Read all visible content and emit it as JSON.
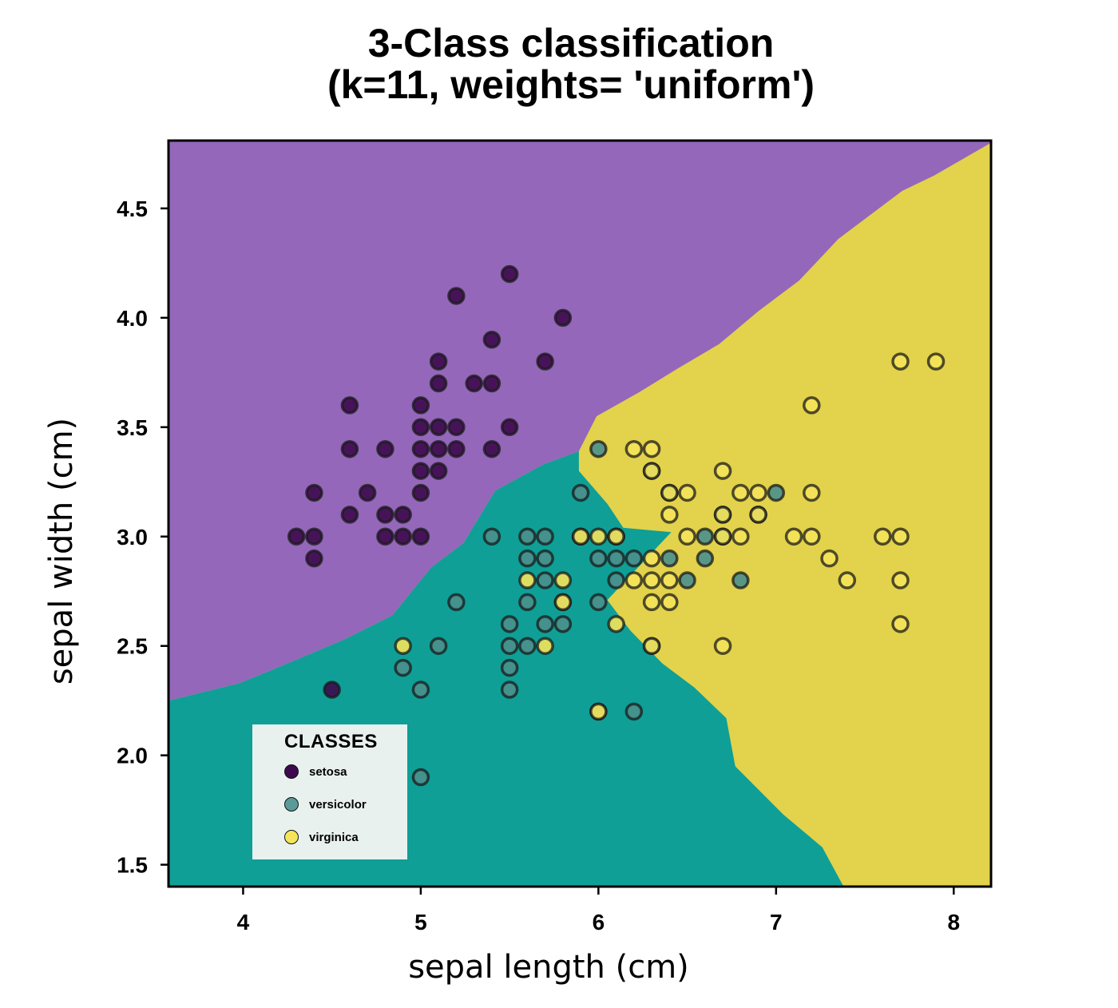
{
  "chart_data": {
    "type": "scatter",
    "title": [
      "3-Class classification",
      "(k=11, weights= 'uniform')"
    ],
    "xlabel": "sepal length (cm)",
    "ylabel": "sepal width (cm)",
    "xlim": [
      3.58,
      8.21
    ],
    "ylim": [
      1.4,
      4.81
    ],
    "xticks": [
      4,
      5,
      6,
      7,
      8
    ],
    "xtick_labels": [
      "4",
      "5",
      "6",
      "7",
      "8"
    ],
    "yticks": [
      1.5,
      2.0,
      2.5,
      3.0,
      3.5,
      4.0,
      4.5
    ],
    "ytick_labels": [
      "1.5",
      "2.0",
      "2.5",
      "3.0",
      "3.5",
      "4.0",
      "4.5"
    ],
    "grid": false,
    "legend": {
      "title": "CLASSES",
      "placement": "lower-left",
      "entries": [
        "setosa",
        "versicolor",
        "virginica"
      ]
    },
    "region_colors": {
      "setosa": "#9467bb",
      "versicolor": "#0f9f96",
      "virginica": "#e3d24b"
    },
    "decision_boundaries": {
      "setosa_vs_versicolor": [
        [
          3.58,
          2.25
        ],
        [
          3.98,
          2.33
        ],
        [
          4.25,
          2.42
        ],
        [
          4.57,
          2.53
        ],
        [
          4.84,
          2.64
        ],
        [
          5.06,
          2.86
        ],
        [
          5.24,
          2.97
        ],
        [
          5.42,
          3.21
        ],
        [
          5.69,
          3.33
        ],
        [
          5.89,
          3.39
        ]
      ],
      "setosa_vs_virginica": [
        [
          5.89,
          3.39
        ],
        [
          5.99,
          3.55
        ],
        [
          6.23,
          3.66
        ],
        [
          6.45,
          3.77
        ],
        [
          6.68,
          3.88
        ],
        [
          6.9,
          4.03
        ],
        [
          7.13,
          4.17
        ],
        [
          7.35,
          4.36
        ],
        [
          7.53,
          4.47
        ],
        [
          7.71,
          4.58
        ],
        [
          7.89,
          4.65
        ],
        [
          8.21,
          4.8
        ]
      ],
      "versicolor_vs_virginica": [
        [
          5.89,
          3.39
        ],
        [
          5.89,
          3.3
        ],
        [
          6.05,
          3.15
        ],
        [
          6.14,
          3.04
        ],
        [
          6.41,
          3.02
        ],
        [
          6.05,
          2.71
        ],
        [
          6.18,
          2.57
        ],
        [
          6.36,
          2.42
        ],
        [
          6.54,
          2.31
        ],
        [
          6.72,
          2.17
        ],
        [
          6.77,
          1.95
        ],
        [
          7.04,
          1.73
        ],
        [
          7.26,
          1.58
        ],
        [
          7.38,
          1.4
        ]
      ]
    },
    "series": [
      {
        "name": "setosa",
        "color": "#3d0a4e",
        "points": [
          [
            5.1,
            3.5
          ],
          [
            4.9,
            3.0
          ],
          [
            4.7,
            3.2
          ],
          [
            4.6,
            3.1
          ],
          [
            5.0,
            3.6
          ],
          [
            5.4,
            3.9
          ],
          [
            4.6,
            3.4
          ],
          [
            5.0,
            3.4
          ],
          [
            4.4,
            2.9
          ],
          [
            4.9,
            3.1
          ],
          [
            5.4,
            3.7
          ],
          [
            4.8,
            3.4
          ],
          [
            4.8,
            3.0
          ],
          [
            4.3,
            3.0
          ],
          [
            5.8,
            4.0
          ],
          [
            5.7,
            3.8
          ],
          [
            5.1,
            3.8
          ],
          [
            5.4,
            3.4
          ],
          [
            5.1,
            3.7
          ],
          [
            4.6,
            3.6
          ],
          [
            5.1,
            3.3
          ],
          [
            5.0,
            3.0
          ],
          [
            5.2,
            3.5
          ],
          [
            5.2,
            3.4
          ],
          [
            4.8,
            3.1
          ],
          [
            5.2,
            4.1
          ],
          [
            5.5,
            4.2
          ],
          [
            5.0,
            3.2
          ],
          [
            5.5,
            3.5
          ],
          [
            4.4,
            3.0
          ],
          [
            5.1,
            3.4
          ],
          [
            5.0,
            3.5
          ],
          [
            4.5,
            2.3
          ],
          [
            4.4,
            3.2
          ],
          [
            5.3,
            3.7
          ],
          [
            5.0,
            3.3
          ]
        ]
      },
      {
        "name": "versicolor",
        "color": "#4a8f8c",
        "points": [
          [
            7.0,
            3.2
          ],
          [
            6.4,
            3.2
          ],
          [
            6.9,
            3.1
          ],
          [
            5.5,
            2.3
          ],
          [
            6.5,
            2.8
          ],
          [
            5.7,
            2.8
          ],
          [
            6.3,
            3.3
          ],
          [
            4.9,
            2.4
          ],
          [
            6.6,
            2.9
          ],
          [
            5.2,
            2.7
          ],
          [
            5.0,
            1.9
          ],
          [
            5.9,
            3.0
          ],
          [
            6.0,
            2.2
          ],
          [
            6.1,
            2.9
          ],
          [
            5.6,
            2.9
          ],
          [
            6.7,
            3.1
          ],
          [
            5.6,
            3.0
          ],
          [
            5.8,
            2.7
          ],
          [
            6.2,
            2.2
          ],
          [
            5.6,
            2.5
          ],
          [
            5.9,
            3.2
          ],
          [
            6.1,
            2.8
          ],
          [
            6.3,
            2.5
          ],
          [
            6.4,
            2.9
          ],
          [
            6.6,
            3.0
          ],
          [
            6.8,
            2.8
          ],
          [
            6.7,
            3.0
          ],
          [
            6.0,
            2.9
          ],
          [
            5.7,
            2.6
          ],
          [
            5.5,
            2.4
          ],
          [
            6.0,
            2.7
          ],
          [
            5.4,
            3.0
          ],
          [
            6.0,
            3.4
          ],
          [
            5.5,
            2.5
          ],
          [
            5.5,
            2.6
          ],
          [
            6.1,
            3.0
          ],
          [
            5.8,
            2.6
          ],
          [
            5.0,
            2.3
          ],
          [
            5.6,
            2.7
          ],
          [
            5.7,
            3.0
          ],
          [
            5.7,
            2.9
          ],
          [
            6.2,
            2.9
          ],
          [
            5.1,
            2.5
          ]
        ]
      },
      {
        "name": "virginica",
        "color": "#f4e35a",
        "points": [
          [
            6.3,
            3.3
          ],
          [
            5.8,
            2.7
          ],
          [
            7.1,
            3.0
          ],
          [
            6.3,
            2.9
          ],
          [
            6.5,
            3.0
          ],
          [
            7.6,
            3.0
          ],
          [
            4.9,
            2.5
          ],
          [
            7.3,
            2.9
          ],
          [
            6.7,
            2.5
          ],
          [
            7.2,
            3.6
          ],
          [
            6.5,
            3.2
          ],
          [
            6.4,
            2.7
          ],
          [
            6.8,
            3.0
          ],
          [
            5.7,
            2.5
          ],
          [
            5.8,
            2.8
          ],
          [
            6.4,
            3.2
          ],
          [
            7.7,
            3.8
          ],
          [
            7.7,
            2.6
          ],
          [
            6.0,
            2.2
          ],
          [
            6.9,
            3.2
          ],
          [
            5.6,
            2.8
          ],
          [
            7.7,
            2.8
          ],
          [
            6.3,
            2.7
          ],
          [
            6.7,
            3.3
          ],
          [
            7.2,
            3.2
          ],
          [
            6.2,
            2.8
          ],
          [
            6.1,
            3.0
          ],
          [
            6.4,
            2.8
          ],
          [
            7.2,
            3.0
          ],
          [
            7.4,
            2.8
          ],
          [
            7.9,
            3.8
          ],
          [
            6.3,
            2.8
          ],
          [
            6.1,
            2.6
          ],
          [
            7.7,
            3.0
          ],
          [
            6.3,
            3.4
          ],
          [
            6.4,
            3.1
          ],
          [
            6.0,
            3.0
          ],
          [
            6.9,
            3.1
          ],
          [
            6.7,
            3.1
          ],
          [
            6.8,
            3.2
          ],
          [
            6.7,
            3.0
          ],
          [
            6.3,
            2.5
          ],
          [
            6.2,
            3.4
          ],
          [
            5.9,
            3.0
          ]
        ]
      }
    ]
  }
}
